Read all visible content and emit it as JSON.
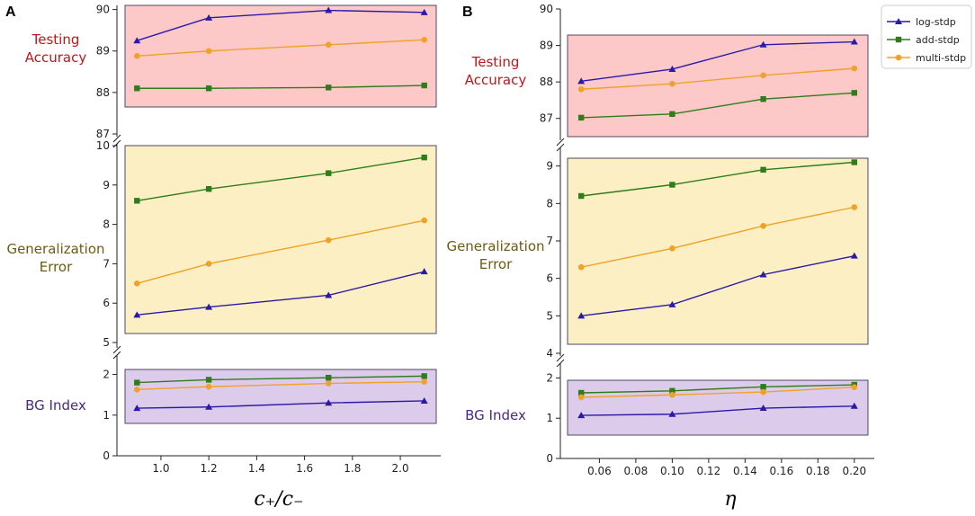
{
  "colors": {
    "log-stdp": "#2b1aa8",
    "add-stdp": "#2e7d1a",
    "multi-stdp": "#f0a226",
    "bg_red": "#fdc8c8",
    "bg_yellow": "#fcefc3",
    "bg_purple": "#dccbea",
    "label_red": "#c0161b",
    "label_brown": "#6e5a13",
    "label_purple": "#4a2a82"
  },
  "legend": {
    "entries": [
      "log-stdp",
      "add-stdp",
      "multi-stdp"
    ],
    "markers": [
      "triangle",
      "square",
      "circle"
    ]
  },
  "panels": [
    {
      "letter": "A",
      "xlabel": "c₊/c₋",
      "x_ticks": [
        "1.0",
        "1.2",
        "1.4",
        "1.6",
        "1.8",
        "2.0"
      ],
      "row_labels": {
        "accuracy": [
          "Testing",
          "Accuracy"
        ],
        "error": [
          "Generalization",
          "Error"
        ],
        "bg": [
          "BG Index"
        ]
      },
      "y_ticks": {
        "accuracy": [
          "87",
          "88",
          "89",
          "90"
        ],
        "error": [
          "5",
          "6",
          "7",
          "8",
          "9",
          "10"
        ],
        "bg": [
          "0",
          "1",
          "2"
        ]
      }
    },
    {
      "letter": "B",
      "xlabel": "η",
      "x_ticks": [
        "0.06",
        "0.08",
        "0.10",
        "0.12",
        "0.14",
        "0.16",
        "0.18",
        "0.20"
      ],
      "row_labels": {
        "accuracy": [
          "Testing",
          "Accuracy"
        ],
        "error": [
          "Generalization",
          "Error"
        ],
        "bg": [
          "BG Index"
        ]
      },
      "y_ticks": {
        "accuracy": [
          "87",
          "88",
          "89",
          "90"
        ],
        "error": [
          "4",
          "5",
          "6",
          "7",
          "8",
          "9"
        ],
        "bg": [
          "0",
          "1",
          "2"
        ]
      }
    }
  ],
  "chart_data": [
    {
      "panel": "A",
      "type": "line",
      "xlabel": "c₊/c₋",
      "x": [
        0.9,
        1.2,
        1.7,
        2.1
      ],
      "xlim": [
        0.85,
        2.15
      ],
      "subplots": [
        {
          "name": "accuracy",
          "ylabel": "Testing Accuracy",
          "ylim": [
            87,
            90.1
          ],
          "series": [
            {
              "name": "log-stdp",
              "values": [
                89.25,
                89.8,
                89.98,
                89.93
              ]
            },
            {
              "name": "add-stdp",
              "values": [
                88.1,
                88.1,
                88.12,
                88.17
              ]
            },
            {
              "name": "multi-stdp",
              "values": [
                88.88,
                89.0,
                89.15,
                89.27
              ]
            }
          ]
        },
        {
          "name": "error",
          "ylabel": "Generalization Error",
          "ylim": [
            5,
            10
          ],
          "series": [
            {
              "name": "log-stdp",
              "values": [
                5.7,
                5.9,
                6.2,
                6.8
              ]
            },
            {
              "name": "add-stdp",
              "values": [
                8.6,
                8.9,
                9.3,
                9.7
              ]
            },
            {
              "name": "multi-stdp",
              "values": [
                6.5,
                7.0,
                7.6,
                8.1
              ]
            }
          ]
        },
        {
          "name": "bg",
          "ylabel": "BG Index",
          "ylim": [
            0,
            2.3
          ],
          "series": [
            {
              "name": "log-stdp",
              "values": [
                1.17,
                1.2,
                1.3,
                1.35
              ]
            },
            {
              "name": "add-stdp",
              "values": [
                1.8,
                1.87,
                1.92,
                1.96
              ]
            },
            {
              "name": "multi-stdp",
              "values": [
                1.63,
                1.7,
                1.78,
                1.82
              ]
            }
          ]
        }
      ]
    },
    {
      "panel": "B",
      "type": "line",
      "xlabel": "η",
      "x": [
        0.05,
        0.1,
        0.15,
        0.2
      ],
      "xlim": [
        0.0425,
        0.2075
      ],
      "subplots": [
        {
          "name": "accuracy",
          "ylabel": "Testing Accuracy",
          "ylim": [
            86.5,
            90
          ],
          "series": [
            {
              "name": "log-stdp",
              "values": [
                88.02,
                88.35,
                89.02,
                89.1
              ]
            },
            {
              "name": "add-stdp",
              "values": [
                87.02,
                87.12,
                87.53,
                87.7
              ]
            },
            {
              "name": "multi-stdp",
              "values": [
                87.8,
                87.95,
                88.18,
                88.37
              ]
            }
          ]
        },
        {
          "name": "error",
          "ylabel": "Generalization Error",
          "ylim": [
            4,
            9.4
          ],
          "series": [
            {
              "name": "log-stdp",
              "values": [
                5.0,
                5.3,
                6.1,
                6.6
              ]
            },
            {
              "name": "add-stdp",
              "values": [
                8.2,
                8.5,
                8.9,
                9.1
              ]
            },
            {
              "name": "multi-stdp",
              "values": [
                6.3,
                6.8,
                7.4,
                7.9
              ]
            }
          ]
        },
        {
          "name": "bg",
          "ylabel": "BG Index",
          "ylim": [
            0,
            2.3
          ],
          "series": [
            {
              "name": "log-stdp",
              "values": [
                1.07,
                1.1,
                1.25,
                1.3
              ]
            },
            {
              "name": "add-stdp",
              "values": [
                1.63,
                1.68,
                1.78,
                1.83
              ]
            },
            {
              "name": "multi-stdp",
              "values": [
                1.52,
                1.58,
                1.65,
                1.77
              ]
            }
          ]
        }
      ]
    }
  ]
}
